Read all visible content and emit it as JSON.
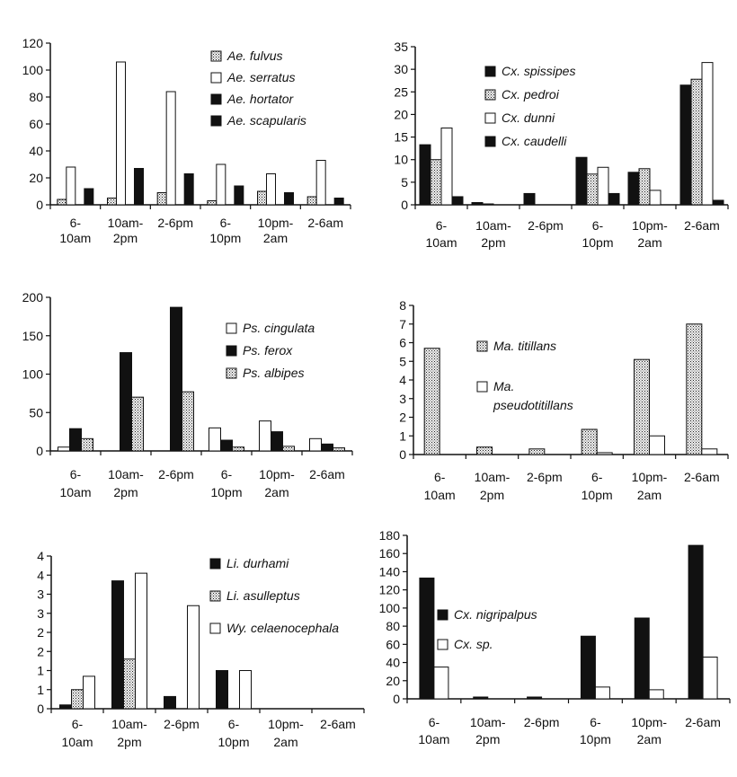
{
  "colors": {
    "black": "#111111",
    "white": "#ffffff",
    "dotted_fg": "#222222",
    "dotted_bg": "#f0f0f0"
  },
  "chart_data": [
    {
      "type": "bar",
      "categories": [
        "6-\n10am",
        "10am-\n2pm",
        "2-6pm",
        "6-\n10pm",
        "10pm-\n2am",
        "2-6am"
      ],
      "ylim": [
        0,
        120
      ],
      "yticks": [
        0,
        20,
        40,
        60,
        80,
        100,
        120
      ],
      "title": "",
      "xlabel": "",
      "ylabel": "",
      "series": [
        {
          "name": "Ae. fulvus",
          "pattern": "dotted",
          "values": [
            4,
            5,
            9,
            3,
            10,
            6
          ]
        },
        {
          "name": "Ae. serratus",
          "pattern": "white",
          "values": [
            28,
            106,
            84,
            30,
            23,
            33
          ]
        },
        {
          "name": "Ae. hortator",
          "pattern": "black",
          "values": [
            0,
            0,
            0,
            0,
            0,
            0
          ]
        },
        {
          "name": "Ae. scapularis",
          "pattern": "black",
          "values": [
            12,
            27,
            23,
            14,
            9,
            5
          ]
        }
      ]
    },
    {
      "type": "bar",
      "categories": [
        "6-\n10am",
        "10am-\n2pm",
        "2-6pm",
        "6-\n10pm",
        "10pm-\n2am",
        "2-6am"
      ],
      "ylim": [
        0,
        35
      ],
      "yticks": [
        0,
        5,
        10,
        15,
        20,
        25,
        30,
        35
      ],
      "title": "",
      "xlabel": "",
      "ylabel": "",
      "series": [
        {
          "name": "Cx. spissipes",
          "pattern": "black",
          "values": [
            13.3,
            0.5,
            2.5,
            10.5,
            7.2,
            26.5
          ]
        },
        {
          "name": "Cx. pedroi",
          "pattern": "dotted",
          "values": [
            10,
            0.2,
            0,
            6.8,
            8,
            27.8
          ]
        },
        {
          "name": "Cx. dunni",
          "pattern": "white",
          "values": [
            17,
            0,
            0,
            8.3,
            3.2,
            31.5
          ]
        },
        {
          "name": "Cx. caudelli",
          "pattern": "black",
          "values": [
            1.8,
            0,
            0,
            2.5,
            0,
            1
          ]
        }
      ]
    },
    {
      "type": "bar",
      "categories": [
        "6-\n10am",
        "10am-\n2pm",
        "2-6pm",
        "6-\n10pm",
        "10pm-\n2am",
        "2-6am"
      ],
      "ylim": [
        0,
        200
      ],
      "yticks": [
        0,
        50,
        100,
        150,
        200
      ],
      "title": "",
      "xlabel": "",
      "ylabel": "",
      "series": [
        {
          "name": "Ps. cingulata",
          "pattern": "white",
          "values": [
            5,
            0,
            0,
            30,
            39,
            16
          ]
        },
        {
          "name": "Ps. ferox",
          "pattern": "black",
          "values": [
            29,
            128,
            187,
            14,
            25,
            9
          ]
        },
        {
          "name": "Ps. albipes",
          "pattern": "dotted",
          "values": [
            16,
            70,
            77,
            5,
            6,
            4
          ]
        }
      ]
    },
    {
      "type": "bar",
      "categories": [
        "6-\n10am",
        "10am-\n2pm",
        "2-6pm",
        "6-\n10pm",
        "10pm-\n2am",
        "2-6am"
      ],
      "ylim": [
        0,
        8
      ],
      "yticks": [
        0,
        1,
        2,
        3,
        4,
        5,
        6,
        7,
        8
      ],
      "title": "",
      "xlabel": "",
      "ylabel": "",
      "series": [
        {
          "name": "Ma. titillans",
          "pattern": "dotted",
          "values": [
            5.7,
            0.4,
            0.3,
            1.35,
            5.1,
            7
          ]
        },
        {
          "name": "Ma. pseudotitillans",
          "pattern": "white",
          "values": [
            0,
            0,
            0,
            0.1,
            1,
            0.3
          ]
        }
      ]
    },
    {
      "type": "bar",
      "categories": [
        "6-\n10am",
        "10am-\n2pm",
        "2-6pm",
        "6-\n10pm",
        "10pm-\n2am",
        "2-6am"
      ],
      "ylim": [
        0,
        4
      ],
      "yticks": [
        0,
        0.5,
        1,
        1.5,
        2,
        2.5,
        3,
        3.5,
        4
      ],
      "yticklabels": [
        "0",
        "1",
        "1",
        "2",
        "2",
        "3",
        "3",
        "4",
        "4"
      ],
      "title": "",
      "xlabel": "",
      "ylabel": "",
      "series": [
        {
          "name": "Li. durhami",
          "pattern": "black",
          "values": [
            0.1,
            3.35,
            0.32,
            1,
            0,
            0
          ]
        },
        {
          "name": "Li. asulleptus",
          "pattern": "dotted",
          "values": [
            0.5,
            1.3,
            0,
            0,
            0,
            0
          ]
        },
        {
          "name": "Wy. celaenocephala",
          "pattern": "white",
          "values": [
            0.85,
            3.55,
            2.7,
            1,
            0,
            0
          ]
        }
      ]
    },
    {
      "type": "bar",
      "categories": [
        "6-\n10am",
        "10am-\n2pm",
        "2-6pm",
        "6-\n10pm",
        "10pm-\n2am",
        "2-6am"
      ],
      "ylim": [
        0,
        180
      ],
      "yticks": [
        0,
        20,
        40,
        60,
        80,
        100,
        120,
        140,
        160,
        180
      ],
      "title": "",
      "xlabel": "",
      "ylabel": "",
      "series": [
        {
          "name": "Cx. nigripalpus",
          "pattern": "black",
          "values": [
            133,
            2,
            2,
            69,
            89,
            169
          ]
        },
        {
          "name": "Cx. sp.",
          "pattern": "white",
          "values": [
            35,
            0,
            0,
            13,
            10,
            46
          ]
        }
      ]
    }
  ]
}
